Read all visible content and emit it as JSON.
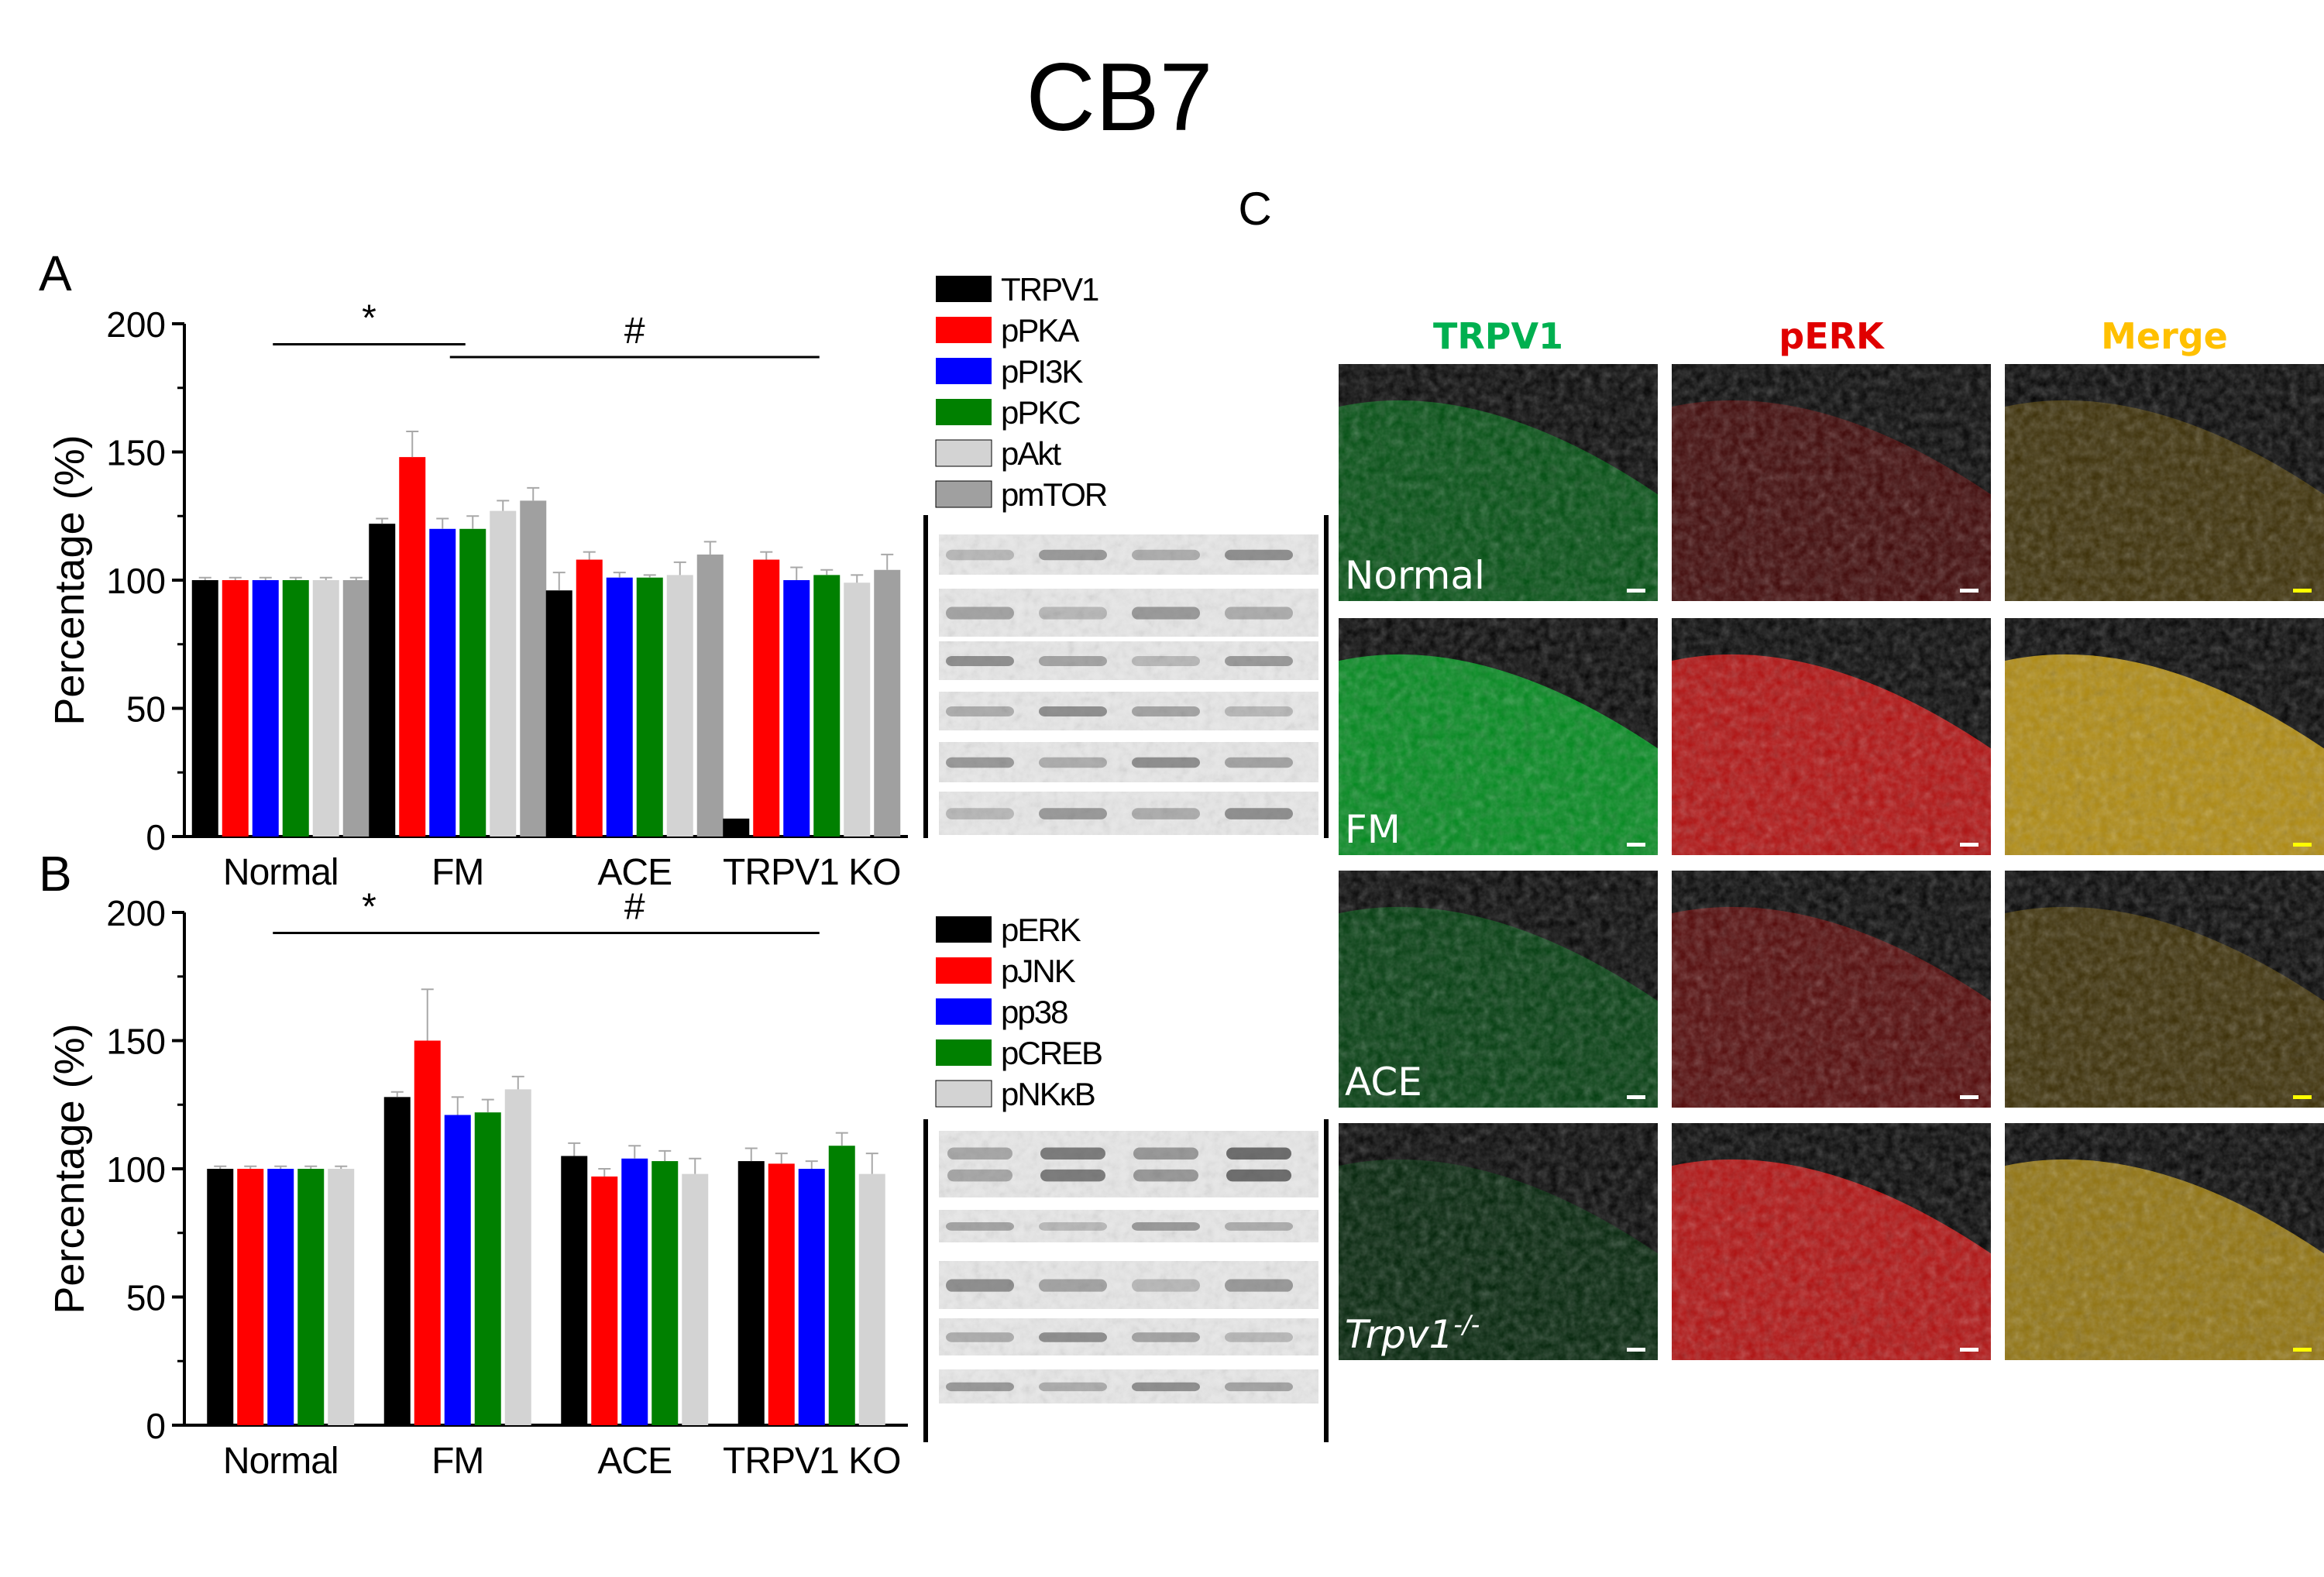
{
  "figure_title": "CB7",
  "chart_data": [
    {
      "panel": "A",
      "type": "bar",
      "ylabel": "Percentage (%)",
      "xlabel": "",
      "ylim": [
        0,
        200
      ],
      "yticks": [
        0,
        50,
        100,
        150,
        200
      ],
      "categories": [
        "Normal",
        "FM",
        "ACE",
        "TRPV1 KO"
      ],
      "series": [
        {
          "name": "TRPV1",
          "color": "#000000",
          "values": [
            100,
            122,
            96,
            7
          ],
          "errors": [
            1,
            2,
            7,
            0
          ]
        },
        {
          "name": "pPKA",
          "color": "#ff0000",
          "values": [
            100,
            148,
            108,
            108
          ],
          "errors": [
            1,
            10,
            3,
            3
          ]
        },
        {
          "name": "pPI3K",
          "color": "#0000ff",
          "values": [
            100,
            120,
            101,
            100
          ],
          "errors": [
            1,
            4,
            2,
            5
          ]
        },
        {
          "name": "pPKC",
          "color": "#008000",
          "values": [
            100,
            120,
            101,
            102
          ],
          "errors": [
            1,
            5,
            1,
            2
          ]
        },
        {
          "name": "pAkt",
          "color": "#d3d3d3",
          "values": [
            100,
            127,
            102,
            99
          ],
          "errors": [
            1,
            4,
            5,
            3
          ]
        },
        {
          "name": "pmTOR",
          "color": "#a0a0a0",
          "values": [
            100,
            131,
            110,
            104
          ],
          "errors": [
            1,
            5,
            5,
            6
          ]
        }
      ],
      "annotations": [
        {
          "text": "*",
          "from": "Normal",
          "to": "FM",
          "level": 192
        },
        {
          "text": "#",
          "from": "FM",
          "to": "TRPV1 KO",
          "level": 187
        }
      ]
    },
    {
      "panel": "B",
      "type": "bar",
      "ylabel": "Percentage (%)",
      "xlabel": "",
      "ylim": [
        0,
        200
      ],
      "yticks": [
        0,
        50,
        100,
        150,
        200
      ],
      "categories": [
        "Normal",
        "FM",
        "ACE",
        "TRPV1 KO"
      ],
      "series": [
        {
          "name": "pERK",
          "color": "#000000",
          "values": [
            100,
            128,
            105,
            103
          ],
          "errors": [
            1,
            2,
            5,
            5
          ]
        },
        {
          "name": "pJNK",
          "color": "#ff0000",
          "values": [
            100,
            150,
            97,
            102
          ],
          "errors": [
            1,
            20,
            3,
            4
          ]
        },
        {
          "name": "pp38",
          "color": "#0000ff",
          "values": [
            100,
            121,
            104,
            100
          ],
          "errors": [
            1,
            7,
            5,
            3
          ]
        },
        {
          "name": "pCREB",
          "color": "#008000",
          "values": [
            100,
            122,
            103,
            109
          ],
          "errors": [
            1,
            5,
            4,
            5
          ]
        },
        {
          "name": "pNKκB",
          "color": "#d3d3d3",
          "values": [
            100,
            131,
            98,
            98
          ],
          "errors": [
            1,
            5,
            6,
            8
          ]
        }
      ],
      "annotations": [
        {
          "text": "*",
          "from": "Normal",
          "to": "FM",
          "level": 192
        },
        {
          "text": "#",
          "from": "FM",
          "to": "TRPV1 KO",
          "level": 192
        }
      ]
    }
  ],
  "panel_c": {
    "label": "C",
    "columns": [
      {
        "label": "TRPV1",
        "color": "#00b050"
      },
      {
        "label": "pERK",
        "color": "#e00000"
      },
      {
        "label": "Merge",
        "color": "#ffc000"
      }
    ],
    "rows": [
      {
        "label": "Normal",
        "superscript": ""
      },
      {
        "label": "FM",
        "superscript": ""
      },
      {
        "label": "ACE",
        "superscript": ""
      },
      {
        "label": "Trpv1",
        "superscript": "-/-"
      }
    ],
    "intensity": [
      [
        0.45,
        0.3,
        0.3
      ],
      [
        0.8,
        0.85,
        0.9
      ],
      [
        0.35,
        0.4,
        0.3
      ],
      [
        0.2,
        0.85,
        0.75
      ]
    ]
  }
}
